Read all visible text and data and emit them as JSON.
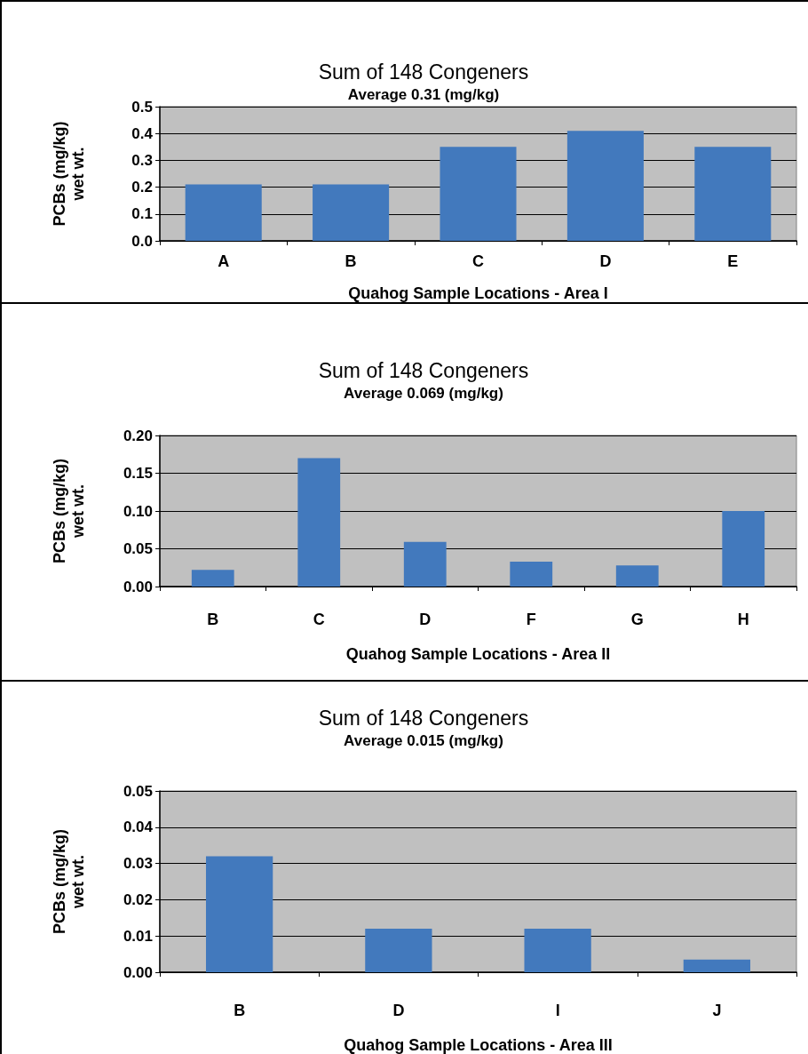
{
  "chart_data": [
    {
      "type": "bar",
      "title": "Sum of 148 Congeners",
      "subtitle": "Average 0.31 (mg/kg)",
      "xlabel": "Quahog Sample Locations - Area I",
      "ylabel": "PCBs (mg/kg)\nwet wt.",
      "categories": [
        "A",
        "B",
        "C",
        "D",
        "E"
      ],
      "values": [
        0.21,
        0.21,
        0.35,
        0.41,
        0.35
      ],
      "color": "#4279bd",
      "ylim": [
        0,
        0.5
      ],
      "yticks": [
        {
          "value": 0,
          "label": "0.0"
        },
        0.1,
        0.2,
        0.3,
        0.4,
        0.5
      ],
      "grid": "y"
    },
    {
      "type": "bar",
      "title": "Sum of 148 Congeners",
      "subtitle": "Average 0.069 (mg/kg)",
      "xlabel": "Quahog Sample Locations - Area II",
      "ylabel": "PCBs (mg/kg)\nwet wt.",
      "categories": [
        "B",
        "C",
        "D",
        "F",
        "G",
        "H"
      ],
      "values": [
        0.022,
        0.17,
        0.059,
        0.033,
        0.028,
        0.1
      ],
      "color": "#4279bd",
      "ylim": [
        0,
        0.2
      ],
      "yticks": [
        {
          "value": 0,
          "label": "0.00"
        },
        0.05,
        {
          "value": 0.1,
          "label": "0.10"
        },
        0.15,
        {
          "value": 0.2,
          "label": "0.20"
        }
      ],
      "grid": "y"
    },
    {
      "type": "bar",
      "title": "Sum of 148 Congeners",
      "subtitle": "Average 0.015 (mg/kg)",
      "xlabel": "Quahog Sample Locations - Area III",
      "ylabel": "PCBs (mg/kg)\nwet wt.",
      "categories": [
        "B",
        "D",
        "I",
        "J"
      ],
      "values": [
        0.032,
        0.012,
        0.012,
        0.0035
      ],
      "color": "#4279bd",
      "ylim": [
        0,
        0.05
      ],
      "yticks": [
        {
          "value": 0,
          "label": "0.00"
        },
        0.01,
        0.02,
        0.03,
        0.04,
        0.05
      ],
      "grid": "y"
    }
  ]
}
